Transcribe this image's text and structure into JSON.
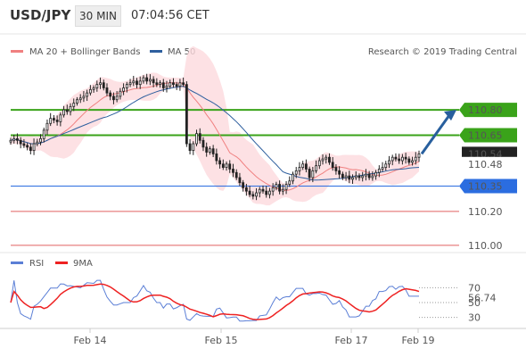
{
  "header": {
    "symbol": "USD/JPY",
    "timeframe": "30 MIN",
    "clock": "07:04:56 CET"
  },
  "legend": {
    "ma20": "MA 20 + Bollinger Bands",
    "ma50": "MA 50",
    "credit": "Research © 2019 Trading Central"
  },
  "colors": {
    "ma20": "#f08080",
    "ma50": "#2e5f9e",
    "bands": "#fdd9dd",
    "up": "#ffffff",
    "candle": "#222222",
    "green": "#3aa31a",
    "blue": "#2b6de0",
    "red": "#e06060",
    "arrow": "#285f9e",
    "rsi": "#5b7fd6",
    "ma9": "#ee2222"
  },
  "chart_data": [
    {
      "type": "candlestick",
      "xlabels": [
        "Feb 14",
        "Feb 15",
        "Feb 17",
        "Feb 19"
      ],
      "ylim": [
        109.92,
        111.08
      ],
      "levels": [
        {
          "value": 110.8,
          "label": "110.80",
          "style": "green"
        },
        {
          "value": 110.65,
          "label": "110.65",
          "style": "green"
        },
        {
          "value": 110.35,
          "label": "110.35",
          "style": "blue"
        },
        {
          "value": 110.2,
          "label": "110.20",
          "style": "red"
        },
        {
          "value": 110.0,
          "label": "110.00",
          "style": "red"
        }
      ],
      "last_price": "110.54",
      "ma50_value": "110.48",
      "series_close": [
        110.62,
        110.63,
        110.62,
        110.6,
        110.59,
        110.58,
        110.56,
        110.6,
        110.61,
        110.63,
        110.68,
        110.72,
        110.75,
        110.74,
        110.73,
        110.77,
        110.8,
        110.79,
        110.82,
        110.84,
        110.86,
        110.87,
        110.88,
        110.9,
        110.92,
        110.93,
        110.95,
        110.96,
        110.93,
        110.9,
        110.88,
        110.86,
        110.88,
        110.91,
        110.93,
        110.95,
        110.96,
        110.97,
        110.95,
        110.97,
        110.99,
        110.97,
        110.98,
        110.96,
        110.95,
        110.96,
        110.93,
        110.94,
        110.96,
        110.95,
        110.94,
        110.96,
        110.95,
        110.6,
        110.56,
        110.6,
        110.66,
        110.62,
        110.58,
        110.55,
        110.57,
        110.54,
        110.5,
        110.48,
        110.46,
        110.48,
        110.45,
        110.43,
        110.4,
        110.37,
        110.34,
        110.32,
        110.3,
        110.29,
        110.31,
        110.33,
        110.32,
        110.3,
        110.32,
        110.34,
        110.36,
        110.32,
        110.33,
        110.36,
        110.38,
        110.42,
        110.44,
        110.46,
        110.48,
        110.45,
        110.4,
        110.44,
        110.47,
        110.5,
        110.51,
        110.52,
        110.49,
        110.46,
        110.44,
        110.42,
        110.4,
        110.41,
        110.39,
        110.4,
        110.41,
        110.4,
        110.41,
        110.42,
        110.4,
        110.41,
        110.43,
        110.45,
        110.46,
        110.48,
        110.5,
        110.52,
        110.51,
        110.5,
        110.52,
        110.51,
        110.49,
        110.5,
        110.52,
        110.54
      ]
    },
    {
      "type": "line",
      "legend": [
        "RSI",
        "9MA"
      ],
      "yticks": [
        70,
        50,
        30
      ],
      "last_value": "56.74",
      "ylim": [
        15,
        85
      ]
    }
  ]
}
